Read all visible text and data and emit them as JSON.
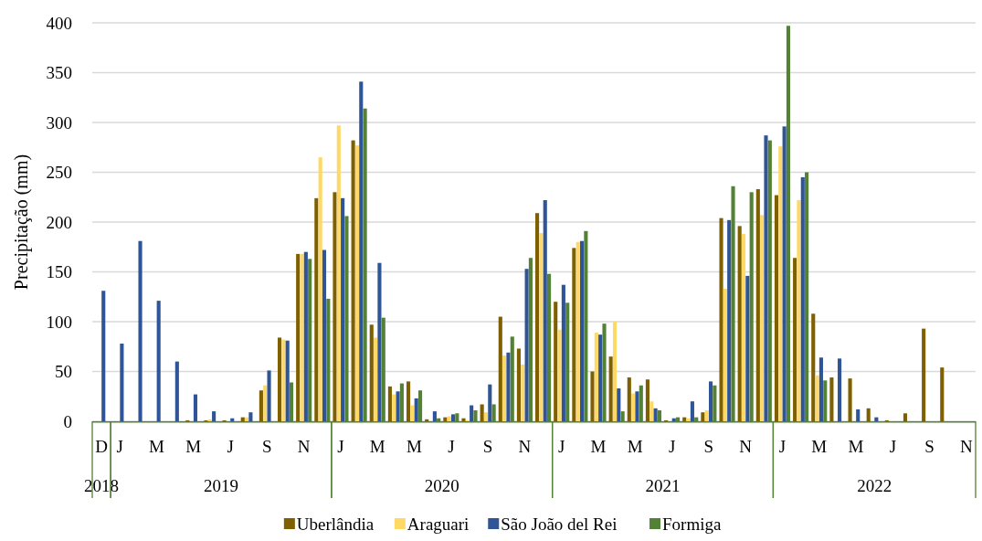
{
  "chart_data": {
    "type": "bar",
    "ylabel": "Precipitação (mm)",
    "categories": [
      "D",
      "J",
      null,
      "M",
      null,
      "M",
      null,
      "J",
      null,
      "S",
      null,
      "N",
      null,
      "J",
      null,
      "M",
      null,
      "M",
      null,
      "J",
      null,
      "S",
      null,
      "N",
      null,
      "J",
      null,
      "M",
      null,
      "M",
      null,
      "J",
      null,
      "S",
      null,
      "N",
      null,
      "J",
      null,
      "M",
      null,
      "M",
      null,
      "J",
      null,
      "S",
      null,
      "N"
    ],
    "series": [
      {
        "name": "Uberlândia",
        "color": "#7f6000",
        "values": [
          null,
          null,
          null,
          null,
          null,
          1,
          1,
          1,
          4,
          31,
          84,
          168,
          224,
          230,
          282,
          97,
          35,
          40,
          2,
          4,
          3,
          17,
          105,
          73,
          209,
          120,
          174,
          50,
          65,
          44,
          42,
          1,
          4,
          9,
          204,
          196,
          233,
          227,
          164,
          108,
          44,
          43,
          13,
          1,
          8,
          93,
          54,
          null
        ]
      },
      {
        "name": "Araguari",
        "color": "#ffd966",
        "values": [
          null,
          null,
          null,
          null,
          null,
          null,
          2,
          null,
          4,
          36,
          82,
          168,
          265,
          297,
          277,
          84,
          27,
          16,
          0,
          5,
          1,
          9,
          66,
          57,
          189,
          92,
          180,
          89,
          100,
          28,
          20,
          0,
          3,
          11,
          133,
          188,
          207,
          276,
          222,
          46,
          null,
          null,
          null,
          null,
          null,
          null,
          null,
          null
        ]
      },
      {
        "name": "São João del Rei",
        "color": "#2f5597",
        "values": [
          131,
          78,
          181,
          121,
          60,
          27,
          10,
          3,
          9,
          51,
          81,
          170,
          172,
          224,
          341,
          159,
          30,
          23,
          10,
          7,
          16,
          37,
          69,
          153,
          222,
          137,
          181,
          87,
          33,
          30,
          13,
          3,
          20,
          40,
          202,
          146,
          287,
          296,
          245,
          64,
          63,
          12,
          4,
          null,
          null,
          null,
          null,
          null
        ]
      },
      {
        "name": "Formiga",
        "color": "#538135",
        "values": [
          null,
          null,
          null,
          null,
          null,
          null,
          null,
          null,
          null,
          null,
          39,
          163,
          123,
          206,
          314,
          104,
          38,
          31,
          3,
          8,
          11,
          17,
          85,
          164,
          148,
          119,
          191,
          98,
          10,
          36,
          11,
          4,
          4,
          36,
          236,
          230,
          282,
          397,
          250,
          41,
          null,
          null,
          null,
          null,
          null,
          null,
          null,
          null
        ]
      }
    ],
    "ylim": [
      0,
      400
    ],
    "yticks": [
      0,
      50,
      100,
      150,
      200,
      250,
      300,
      350,
      400
    ],
    "grid": "y",
    "legend": "bottom",
    "annotations": [
      "2018",
      "2019",
      "2020",
      "2021",
      "2022"
    ]
  }
}
